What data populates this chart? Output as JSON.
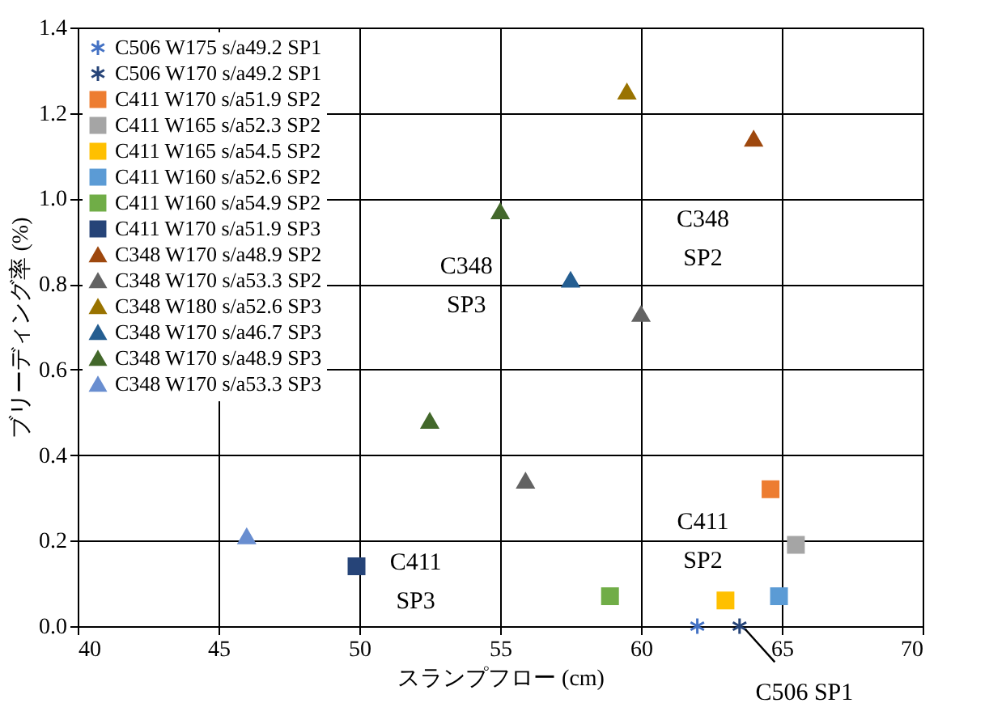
{
  "chart_data": {
    "type": "scatter",
    "xlabel": "スランプフロー (cm)",
    "ylabel": "ブリーディング率 (%)",
    "xlim": [
      40,
      70
    ],
    "xticks": [
      40,
      45,
      50,
      55,
      60,
      65,
      70
    ],
    "ylim": [
      0,
      1.4
    ],
    "yticks": [
      {
        "value": 0,
        "label": "0.0"
      },
      {
        "value": 0.2,
        "label": "0.2"
      },
      {
        "value": 0.4,
        "label": "0.4"
      },
      {
        "value": 0.6,
        "label": "0.6"
      },
      {
        "value": 0.8,
        "label": "0.8"
      },
      {
        "value": 1.0,
        "label": "1.0"
      },
      {
        "value": 1.2,
        "label": "1.2"
      },
      {
        "value": 1.4,
        "label": "1.4"
      }
    ],
    "grid": true,
    "legend": "top left",
    "series": [
      {
        "name": "C506 W175 s/a49.2 SP1",
        "color": "#4472c4",
        "marker": "cross",
        "x": [
          62.0
        ],
        "values": [
          0.0
        ]
      },
      {
        "name": "C506 W170 s/a49.2 SP1",
        "color": "#264478",
        "marker": "cross",
        "x": [
          63.5
        ],
        "values": [
          0.0
        ]
      },
      {
        "name": "C411 W170 s/a51.9 SP2",
        "color": "#ed7d31",
        "marker": "square",
        "x": [
          64.6
        ],
        "values": [
          0.32
        ]
      },
      {
        "name": "C411 W165 s/a52.3 SP2",
        "color": "#a5a5a5",
        "marker": "square",
        "x": [
          65.5
        ],
        "values": [
          0.19
        ]
      },
      {
        "name": "C411 W165 s/a54.5 SP2",
        "color": "#ffc000",
        "marker": "square",
        "x": [
          63.0
        ],
        "values": [
          0.06
        ]
      },
      {
        "name": "C411 W160 s/a52.6 SP2",
        "color": "#5b9bd5",
        "marker": "square",
        "x": [
          64.9
        ],
        "values": [
          0.07
        ]
      },
      {
        "name": "C411 W160 s/a54.9 SP2",
        "color": "#70ad47",
        "marker": "square",
        "x": [
          58.9
        ],
        "values": [
          0.07
        ]
      },
      {
        "name": "C411 W170 s/a51.9 SP3",
        "color": "#264478",
        "marker": "square",
        "x": [
          49.9
        ],
        "values": [
          0.14
        ]
      },
      {
        "name": "C348 W170 s/a48.9 SP2",
        "color": "#9e480e",
        "marker": "triangle",
        "x": [
          64.0
        ],
        "values": [
          1.14
        ]
      },
      {
        "name": "C348 W170 s/a53.3 SP2",
        "color": "#636363",
        "marker": "triangle",
        "x": [
          60.0,
          55.9
        ],
        "values": [
          0.73,
          0.34
        ]
      },
      {
        "name": "C348 W180 s/a52.6 SP3",
        "color": "#997300",
        "marker": "triangle",
        "x": [
          59.5
        ],
        "values": [
          1.25
        ]
      },
      {
        "name": "C348 W170 s/a46.7 SP3",
        "color": "#255e91",
        "marker": "triangle",
        "x": [
          57.5
        ],
        "values": [
          0.81
        ]
      },
      {
        "name": "C348 W170 s/a48.9 SP3",
        "color": "#43682b",
        "marker": "triangle",
        "x": [
          55.0,
          52.5
        ],
        "values": [
          0.97,
          0.48
        ]
      },
      {
        "name": "C348 W170 s/a53.3 SP3",
        "color": "#698ed0",
        "marker": "triangle",
        "x": [
          46.0
        ],
        "values": [
          0.21
        ]
      }
    ],
    "annotations": [
      "C348\nSP3",
      "C348\nSP2",
      "C411\nSP2",
      "C411\nSP3",
      "C506 SP1"
    ]
  }
}
